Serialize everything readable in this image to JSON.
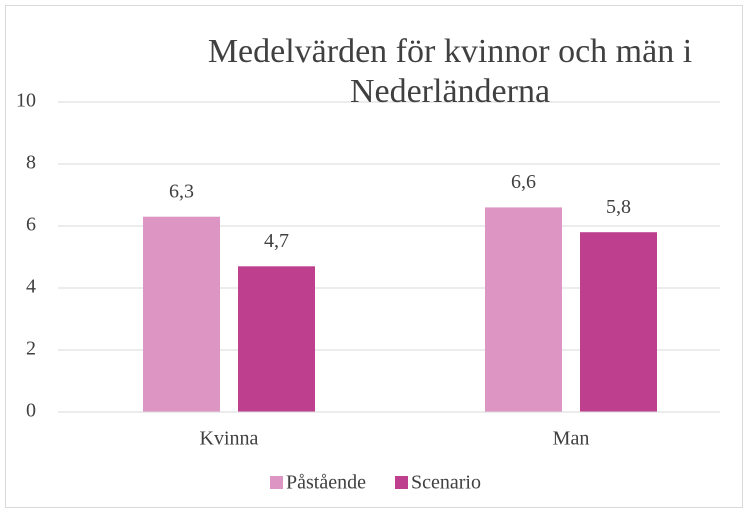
{
  "chart_data": {
    "type": "bar",
    "title": "Medelvärden för kvinnor och män i Nederländerna",
    "categories": [
      "Kvinna",
      "Man"
    ],
    "series": [
      {
        "name": "Påstående",
        "color": "#dd96c4",
        "values": [
          6.3,
          6.6
        ],
        "value_labels": [
          "6,3",
          "6,6"
        ]
      },
      {
        "name": "Scenario",
        "color": "#bf3f8f",
        "values": [
          4.7,
          5.8
        ],
        "value_labels": [
          "4,7",
          "5,8"
        ]
      }
    ],
    "ylim": [
      0,
      10
    ],
    "yticks": [
      0,
      2,
      4,
      6,
      8,
      10
    ],
    "grid": true,
    "legend": "bottom"
  }
}
